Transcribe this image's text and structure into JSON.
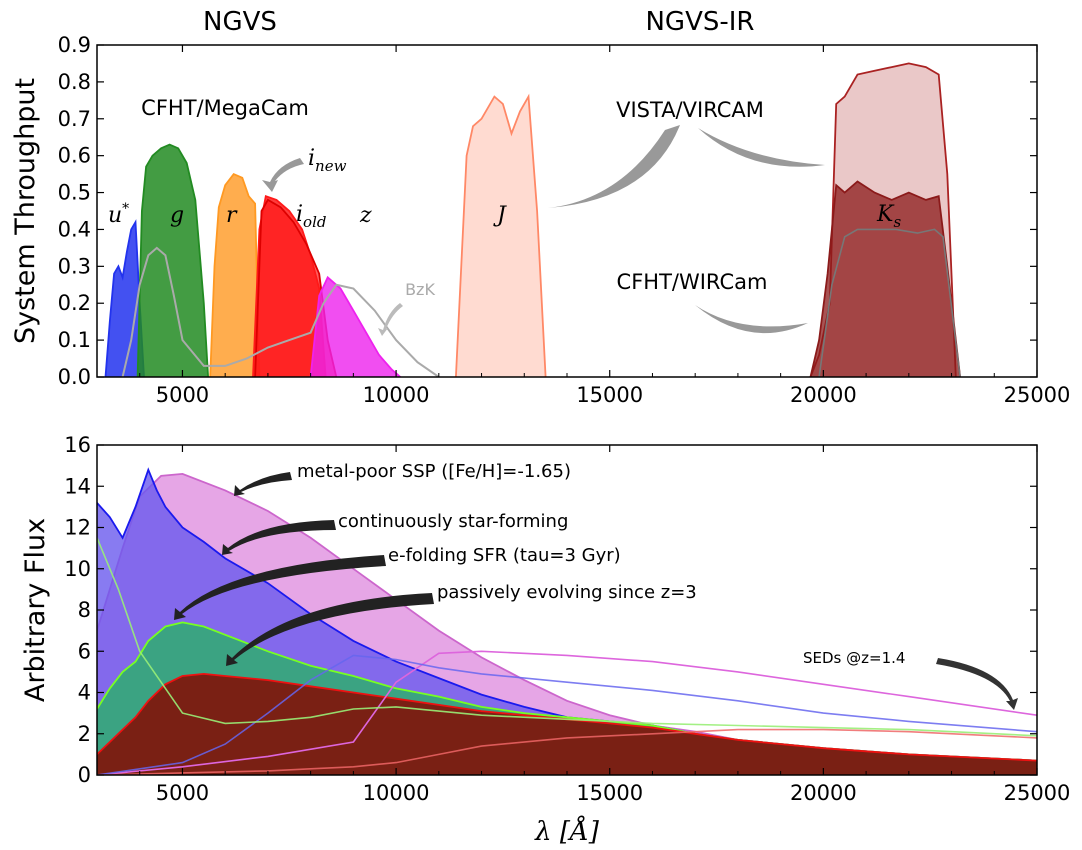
{
  "colors": {
    "u": "#2233ee",
    "g": "#228b22",
    "r": "#ff9922",
    "i_old": "#ff1a1a",
    "z": "#ee22ee",
    "J": "#ff8866",
    "Ks_vista": "#aa2222",
    "Ks_wircam": "#8b1a1a",
    "bzk": "#aaaaaa",
    "metal_poor": "#dd88dd",
    "const_sf": "#1a1aee",
    "efold": "#77ff22",
    "passive": "#ee1111",
    "arrow": "#999999",
    "arrow_dark": "#333333"
  },
  "header": {
    "left": "NGVS",
    "right": "NGVS-IR"
  },
  "chart_data": [
    {
      "type": "area",
      "xlabel": "",
      "ylabel": "System Throughput",
      "xlim": [
        3000,
        25000
      ],
      "ylim": [
        0.0,
        0.9
      ],
      "xticks": [
        5000,
        10000,
        15000,
        20000,
        25000
      ],
      "yticks": [
        0.0,
        0.1,
        0.2,
        0.3,
        0.4,
        0.5,
        0.6,
        0.7,
        0.8,
        0.9
      ],
      "grid": false,
      "annotations": {
        "megacam": "CFHT/MegaCam",
        "vircam": "VISTA/VIRCAM",
        "wircam": "CFHT/WIRCam",
        "bzk": "BzK",
        "u": "u*",
        "g": "g",
        "r": "r",
        "i_old": "i_old",
        "i_new": "i_new",
        "z": "z",
        "J": "J",
        "Ks": "K_s"
      },
      "series": [
        {
          "key": "u",
          "x": [
            3200,
            3300,
            3400,
            3500,
            3600,
            3700,
            3800,
            3900,
            4000,
            4100
          ],
          "y": [
            0.0,
            0.15,
            0.28,
            0.3,
            0.27,
            0.34,
            0.4,
            0.42,
            0.2,
            0.0
          ]
        },
        {
          "key": "g",
          "x": [
            3950,
            4050,
            4150,
            4300,
            4500,
            4700,
            4900,
            5100,
            5300,
            5500,
            5600
          ],
          "y": [
            0.0,
            0.45,
            0.57,
            0.6,
            0.62,
            0.63,
            0.62,
            0.58,
            0.48,
            0.2,
            0.0
          ]
        },
        {
          "key": "r",
          "x": [
            5650,
            5750,
            5850,
            6000,
            6200,
            6400,
            6550,
            6700,
            6800
          ],
          "y": [
            0.0,
            0.3,
            0.46,
            0.52,
            0.55,
            0.54,
            0.49,
            0.47,
            0.0
          ]
        },
        {
          "key": "i_new",
          "x": [
            6650,
            6800,
            6950,
            7200,
            7500,
            7800,
            8000,
            8200,
            8350
          ],
          "y": [
            0.0,
            0.4,
            0.49,
            0.48,
            0.45,
            0.4,
            0.33,
            0.24,
            0.0
          ]
        },
        {
          "key": "i_old",
          "x": [
            6700,
            6850,
            7000,
            7300,
            7600,
            7900,
            8200,
            8400,
            8600
          ],
          "y": [
            0.0,
            0.45,
            0.48,
            0.46,
            0.42,
            0.36,
            0.28,
            0.1,
            0.0
          ]
        },
        {
          "key": "z",
          "x": [
            8000,
            8200,
            8400,
            8700,
            9000,
            9300,
            9600,
            9900,
            10100
          ],
          "y": [
            0.0,
            0.22,
            0.27,
            0.24,
            0.18,
            0.12,
            0.06,
            0.02,
            0.0
          ]
        },
        {
          "key": "J",
          "x": [
            11400,
            11650,
            11800,
            12000,
            12300,
            12500,
            12700,
            12900,
            13100,
            13300,
            13500
          ],
          "y": [
            0.0,
            0.6,
            0.68,
            0.7,
            0.76,
            0.74,
            0.66,
            0.72,
            0.76,
            0.45,
            0.0
          ]
        },
        {
          "key": "Ks_vista",
          "x": [
            19700,
            19900,
            20150,
            20300,
            20500,
            20800,
            21200,
            21600,
            22000,
            22400,
            22700,
            22900,
            23100
          ],
          "y": [
            0.0,
            0.06,
            0.2,
            0.74,
            0.76,
            0.82,
            0.83,
            0.84,
            0.85,
            0.84,
            0.82,
            0.55,
            0.0
          ]
        },
        {
          "key": "Ks_wircam",
          "x": [
            19700,
            19900,
            20100,
            20300,
            20500,
            20800,
            21200,
            21600,
            22000,
            22400,
            22700,
            22900,
            23200
          ],
          "y": [
            0.0,
            0.1,
            0.28,
            0.52,
            0.5,
            0.53,
            0.5,
            0.48,
            0.5,
            0.48,
            0.49,
            0.3,
            0.0
          ]
        },
        {
          "key": "bzk",
          "x": [
            3600,
            3800,
            4000,
            4200,
            4400,
            4600,
            4800,
            5000,
            5500,
            6000,
            6500,
            7000,
            7500,
            8000,
            8300,
            8600,
            9000,
            9500,
            10000,
            10500,
            11000
          ],
          "y": [
            0.0,
            0.1,
            0.25,
            0.33,
            0.35,
            0.33,
            0.22,
            0.1,
            0.03,
            0.03,
            0.05,
            0.08,
            0.1,
            0.12,
            0.2,
            0.25,
            0.24,
            0.18,
            0.1,
            0.04,
            0.0
          ]
        },
        {
          "key": "Ks_bzk",
          "x": [
            19900,
            20200,
            20500,
            20800,
            21200,
            21700,
            22200,
            22600,
            22800,
            23200
          ],
          "y": [
            0.0,
            0.25,
            0.38,
            0.4,
            0.4,
            0.4,
            0.39,
            0.4,
            0.38,
            0.0
          ]
        }
      ]
    },
    {
      "type": "area",
      "xlabel": "λ [Å]",
      "ylabel": "Arbitrary Flux",
      "xlim": [
        3000,
        25000
      ],
      "ylim": [
        0,
        16
      ],
      "xticks": [
        5000,
        10000,
        15000,
        20000,
        25000
      ],
      "yticks": [
        0,
        2,
        4,
        6,
        8,
        10,
        12,
        14,
        16
      ],
      "grid": false,
      "annotations": {
        "metal_poor": "metal-poor SSP ([Fe/H]=-1.65)",
        "const_sf": "continuously star-forming",
        "efold": "e-folding SFR (tau=3 Gyr)",
        "passive": "passively evolving since z=3",
        "seds": "SEDs @z=1.4"
      },
      "series": [
        {
          "key": "metal_poor",
          "x": [
            3000,
            3300,
            3600,
            4000,
            4500,
            5000,
            6000,
            7000,
            8000,
            9000,
            10000,
            11000,
            12000,
            13000,
            14000,
            15000,
            16000,
            17000,
            18000,
            20000,
            22000,
            25000
          ],
          "y": [
            7.0,
            9.0,
            11.0,
            13.5,
            14.5,
            14.6,
            13.8,
            12.8,
            11.5,
            10.0,
            8.5,
            7.0,
            5.7,
            4.6,
            3.6,
            2.9,
            2.4,
            2.1,
            1.7,
            1.3,
            1.0,
            0.7
          ]
        },
        {
          "key": "const_sf",
          "x": [
            3000,
            3300,
            3600,
            3900,
            4200,
            4400,
            4600,
            5000,
            5500,
            6000,
            7000,
            8000,
            9000,
            10000,
            11000,
            12000,
            13000,
            14000,
            15000,
            16000,
            17000,
            18000,
            20000,
            22000,
            25000
          ],
          "y": [
            13.2,
            12.5,
            11.5,
            13.0,
            14.8,
            13.8,
            13.0,
            12.0,
            11.3,
            10.5,
            9.3,
            7.8,
            6.5,
            5.5,
            4.7,
            3.9,
            3.3,
            2.8,
            2.6,
            2.4,
            2.0,
            1.7,
            1.3,
            1.0,
            0.7
          ]
        },
        {
          "key": "efold",
          "x": [
            3000,
            3300,
            3600,
            3900,
            4200,
            4600,
            5000,
            5500,
            6000,
            7000,
            8000,
            9000,
            10000,
            11000,
            12000,
            13000,
            14000,
            15000,
            16000,
            17000,
            18000,
            20000,
            22000,
            25000
          ],
          "y": [
            3.2,
            4.2,
            5.0,
            5.5,
            6.5,
            7.2,
            7.4,
            7.2,
            6.8,
            6.0,
            5.3,
            4.8,
            4.2,
            3.8,
            3.3,
            3.0,
            2.8,
            2.6,
            2.4,
            2.0,
            1.7,
            1.3,
            1.0,
            0.7
          ]
        },
        {
          "key": "passive",
          "x": [
            3000,
            3300,
            3600,
            3900,
            4200,
            4600,
            5000,
            5500,
            6000,
            7000,
            8000,
            9000,
            10000,
            11000,
            12000,
            13000,
            14000,
            15000,
            16000,
            17000,
            18000,
            20000,
            22000,
            25000
          ],
          "y": [
            1.0,
            1.6,
            2.2,
            2.8,
            3.6,
            4.4,
            4.8,
            4.9,
            4.8,
            4.6,
            4.3,
            4.0,
            3.7,
            3.4,
            3.1,
            2.9,
            2.7,
            2.5,
            2.3,
            2.0,
            1.7,
            1.3,
            1.0,
            0.7
          ]
        },
        {
          "key": "metal_poor_z14",
          "x": [
            3000,
            5000,
            7000,
            9000,
            10000,
            11000,
            12000,
            14000,
            16000,
            18000,
            20000,
            22000,
            25000
          ],
          "y": [
            0.0,
            0.4,
            0.9,
            1.6,
            4.5,
            5.9,
            6.0,
            5.8,
            5.5,
            5.0,
            4.4,
            3.8,
            2.9
          ]
        },
        {
          "key": "const_sf_z14",
          "x": [
            3000,
            5000,
            6000,
            7000,
            8000,
            9000,
            10000,
            11000,
            12000,
            14000,
            16000,
            18000,
            20000,
            22000,
            25000
          ],
          "y": [
            0.0,
            0.6,
            1.5,
            3.0,
            4.6,
            5.8,
            5.6,
            5.2,
            4.9,
            4.5,
            4.1,
            3.6,
            3.0,
            2.6,
            2.1
          ]
        },
        {
          "key": "efold_z14",
          "x": [
            3000,
            3500,
            4000,
            5000,
            6000,
            7000,
            8000,
            9000,
            10000,
            11000,
            12000,
            14000,
            16000,
            18000,
            20000,
            22000,
            25000
          ],
          "y": [
            11.5,
            9.0,
            6.0,
            3.0,
            2.5,
            2.6,
            2.8,
            3.2,
            3.3,
            3.1,
            2.9,
            2.7,
            2.5,
            2.4,
            2.3,
            2.2,
            1.9
          ]
        },
        {
          "key": "passive_z14",
          "x": [
            3000,
            5000,
            7000,
            8000,
            9000,
            10000,
            11000,
            12000,
            14000,
            16000,
            18000,
            20000,
            22000,
            25000
          ],
          "y": [
            0.0,
            0.1,
            0.2,
            0.3,
            0.4,
            0.6,
            1.0,
            1.4,
            1.8,
            2.0,
            2.2,
            2.2,
            2.1,
            1.8
          ]
        }
      ]
    }
  ]
}
